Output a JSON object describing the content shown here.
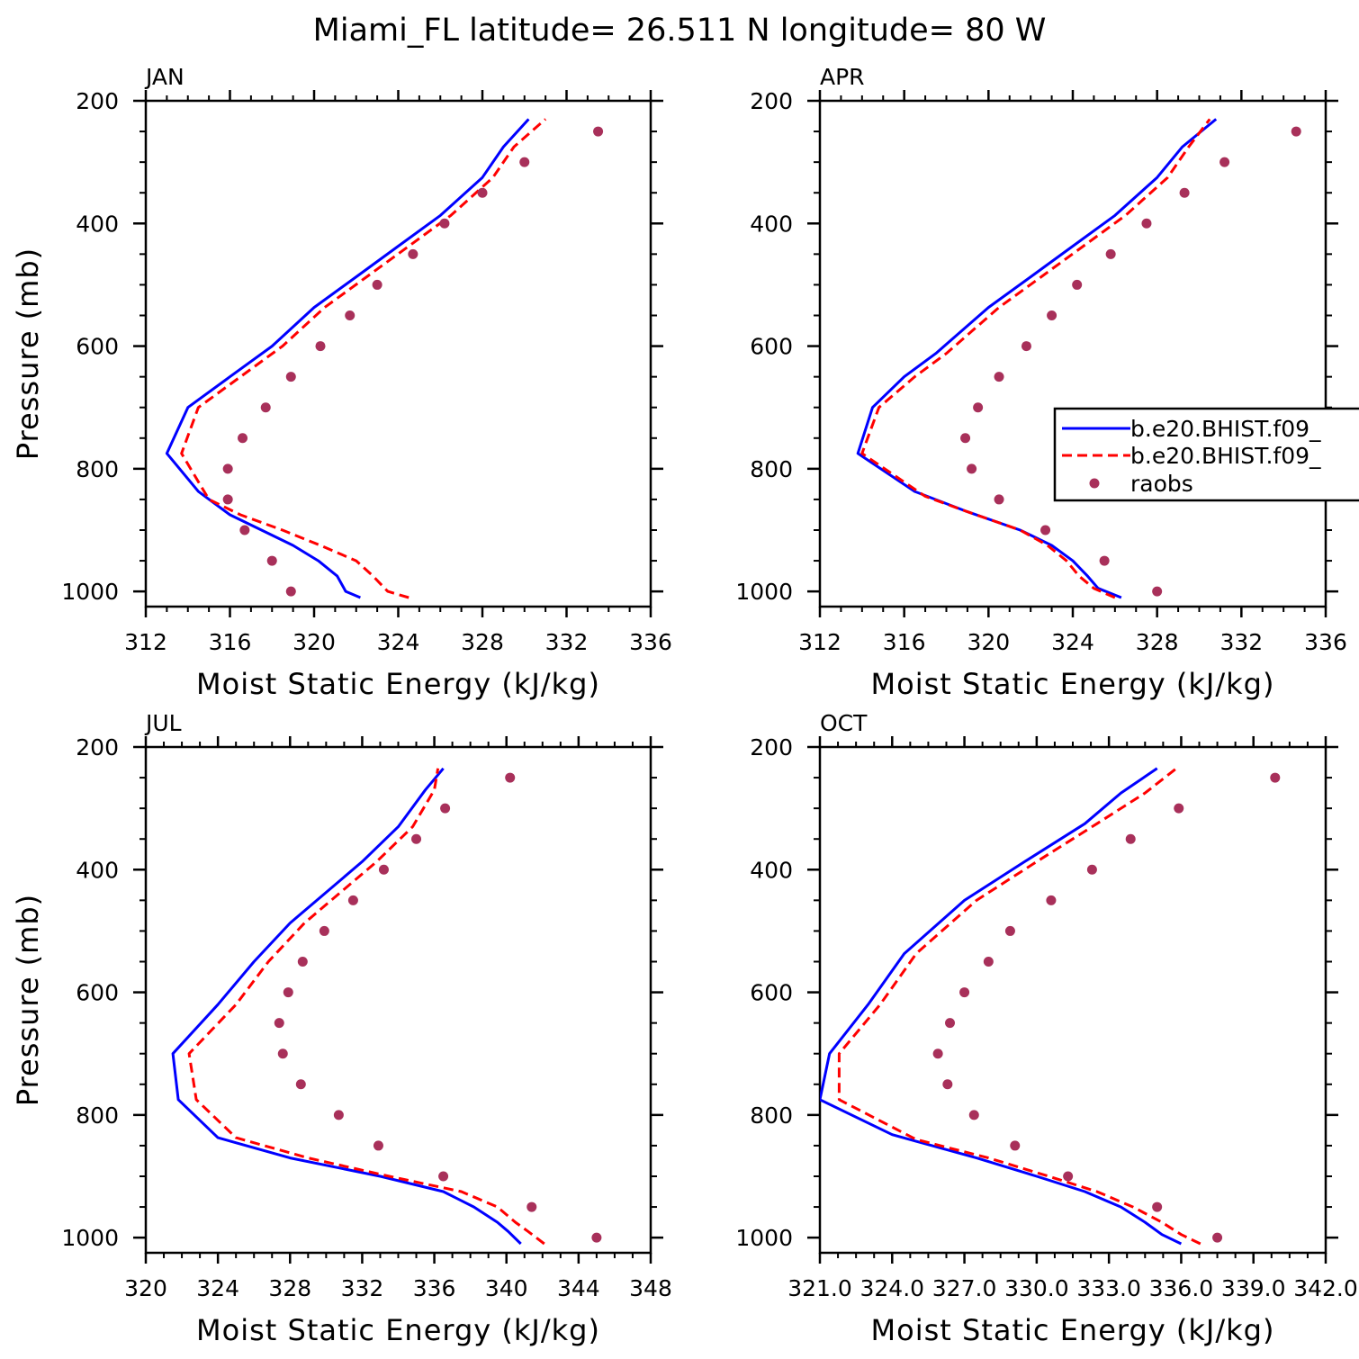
{
  "figure_title": "Miami_FL  latitude= 26.511 N longitude= 80 W",
  "colors": {
    "model1": "#0000ff",
    "model2": "#ff0000",
    "raobs": "#a8305a",
    "axes": "#000000"
  },
  "legend": {
    "entries": [
      "b.e20.BHIST.f09_",
      "b.e20.BHIST.f09_",
      "raobs"
    ],
    "panel": "APR",
    "placement": "right, clipped at figure edge"
  },
  "chart_data": [
    {
      "type": "line",
      "panel_label": "JAN",
      "xlabel": "Moist Static Energy (kJ/kg)",
      "ylabel": "Pressure (mb)",
      "xlim": [
        312,
        336
      ],
      "ylim": [
        1000,
        200
      ],
      "x_ticks": [
        "312",
        "316",
        "320",
        "324",
        "328",
        "332",
        "336"
      ],
      "y_ticks": [
        "200",
        "400",
        "600",
        "800",
        "1000"
      ],
      "series": [
        {
          "name": "b.e20.BHIST.f09_",
          "style": "solid",
          "color": "#0000ff",
          "points": [
            [
              322.2,
              1010
            ],
            [
              321.5,
              1000
            ],
            [
              321.1,
              975
            ],
            [
              320.2,
              950
            ],
            [
              319.0,
              925
            ],
            [
              317.5,
              900
            ],
            [
              316.0,
              875
            ],
            [
              314.5,
              837
            ],
            [
              313.0,
              775
            ],
            [
              314.0,
              700
            ],
            [
              316.0,
              650
            ],
            [
              318.0,
              600
            ],
            [
              320.0,
              537
            ],
            [
              322.0,
              487
            ],
            [
              324.0,
              437
            ],
            [
              326.0,
              387
            ],
            [
              328.0,
              325
            ],
            [
              329.0,
              275
            ],
            [
              330.2,
              230
            ]
          ]
        },
        {
          "name": "b.e20.BHIST.f09_",
          "style": "dashed",
          "color": "#ff0000",
          "points": [
            [
              324.5,
              1010
            ],
            [
              323.5,
              1000
            ],
            [
              322.8,
              975
            ],
            [
              322.0,
              950
            ],
            [
              320.3,
              925
            ],
            [
              318.5,
              900
            ],
            [
              316.5,
              875
            ],
            [
              315.0,
              850
            ],
            [
              313.7,
              775
            ],
            [
              314.5,
              700
            ],
            [
              316.5,
              650
            ],
            [
              318.5,
              600
            ],
            [
              320.5,
              537
            ],
            [
              322.5,
              487
            ],
            [
              324.5,
              437
            ],
            [
              326.5,
              387
            ],
            [
              328.5,
              325
            ],
            [
              329.5,
              275
            ],
            [
              331.0,
              230
            ]
          ]
        },
        {
          "name": "raobs",
          "style": "markers",
          "color": "#a8305a",
          "points": [
            [
              333.5,
              250
            ],
            [
              330.0,
              300
            ],
            [
              328.0,
              350
            ],
            [
              326.2,
              400
            ],
            [
              324.7,
              450
            ],
            [
              323.0,
              500
            ],
            [
              321.7,
              550
            ],
            [
              320.3,
              600
            ],
            [
              318.9,
              650
            ],
            [
              317.7,
              700
            ],
            [
              316.6,
              750
            ],
            [
              315.9,
              800
            ],
            [
              315.9,
              850
            ],
            [
              316.7,
              900
            ],
            [
              318.0,
              950
            ],
            [
              318.9,
              1000
            ]
          ]
        }
      ]
    },
    {
      "type": "line",
      "panel_label": "APR",
      "xlabel": "Moist Static Energy (kJ/kg)",
      "ylabel": "",
      "xlim": [
        312,
        336
      ],
      "ylim": [
        1000,
        200
      ],
      "x_ticks": [
        "312",
        "316",
        "320",
        "324",
        "328",
        "332",
        "336"
      ],
      "y_ticks": [
        "200",
        "400",
        "600",
        "800",
        "1000"
      ],
      "series": [
        {
          "name": "b.e20.BHIST.f09_",
          "style": "solid",
          "color": "#0000ff",
          "points": [
            [
              326.3,
              1010
            ],
            [
              325.2,
              995
            ],
            [
              324.7,
              975
            ],
            [
              324.0,
              950
            ],
            [
              323.0,
              925
            ],
            [
              321.5,
              900
            ],
            [
              319.0,
              870
            ],
            [
              316.5,
              837
            ],
            [
              313.8,
              775
            ],
            [
              314.5,
              700
            ],
            [
              316.0,
              650
            ],
            [
              317.5,
              612
            ],
            [
              320.0,
              537
            ],
            [
              322.0,
              487
            ],
            [
              324.0,
              437
            ],
            [
              326.0,
              387
            ],
            [
              328.0,
              325
            ],
            [
              329.2,
              275
            ],
            [
              330.8,
              230
            ]
          ]
        },
        {
          "name": "b.e20.BHIST.f09_",
          "style": "dashed",
          "color": "#ff0000",
          "points": [
            [
              326.0,
              1010
            ],
            [
              325.0,
              995
            ],
            [
              324.3,
              975
            ],
            [
              323.7,
              950
            ],
            [
              322.8,
              925
            ],
            [
              321.5,
              900
            ],
            [
              319.0,
              870
            ],
            [
              317.0,
              845
            ],
            [
              314.0,
              775
            ],
            [
              314.8,
              700
            ],
            [
              316.5,
              650
            ],
            [
              318.0,
              612
            ],
            [
              320.5,
              537
            ],
            [
              322.5,
              487
            ],
            [
              324.5,
              437
            ],
            [
              326.5,
              387
            ],
            [
              328.5,
              325
            ],
            [
              329.5,
              275
            ],
            [
              330.5,
              230
            ]
          ]
        },
        {
          "name": "raobs",
          "style": "markers",
          "color": "#a8305a",
          "points": [
            [
              334.6,
              250
            ],
            [
              331.2,
              300
            ],
            [
              329.3,
              350
            ],
            [
              327.5,
              400
            ],
            [
              325.8,
              450
            ],
            [
              324.2,
              500
            ],
            [
              323.0,
              550
            ],
            [
              321.8,
              600
            ],
            [
              320.5,
              650
            ],
            [
              319.5,
              700
            ],
            [
              318.9,
              750
            ],
            [
              319.2,
              800
            ],
            [
              320.5,
              850
            ],
            [
              322.7,
              900
            ],
            [
              325.5,
              950
            ],
            [
              328.0,
              1000
            ]
          ]
        }
      ]
    },
    {
      "type": "line",
      "panel_label": "JUL",
      "xlabel": "Moist Static Energy (kJ/kg)",
      "ylabel": "Pressure (mb)",
      "xlim": [
        320,
        348
      ],
      "ylim": [
        1000,
        200
      ],
      "x_ticks": [
        "320",
        "324",
        "328",
        "332",
        "336",
        "340",
        "344",
        "348"
      ],
      "y_ticks": [
        "200",
        "400",
        "600",
        "800",
        "1000"
      ],
      "series": [
        {
          "name": "b.e20.BHIST.f09_",
          "style": "solid",
          "color": "#0000ff",
          "points": [
            [
              340.8,
              1010
            ],
            [
              340.1,
              990
            ],
            [
              339.5,
              975
            ],
            [
              338.2,
              950
            ],
            [
              336.5,
              925
            ],
            [
              333.0,
              900
            ],
            [
              328.0,
              870
            ],
            [
              324.0,
              837
            ],
            [
              321.8,
              775
            ],
            [
              321.5,
              700
            ],
            [
              324.0,
              620
            ],
            [
              326.0,
              550
            ],
            [
              328.0,
              487
            ],
            [
              330.0,
              437
            ],
            [
              332.0,
              387
            ],
            [
              334.0,
              330
            ],
            [
              335.5,
              270
            ],
            [
              336.5,
              235
            ]
          ]
        },
        {
          "name": "b.e20.BHIST.f09_",
          "style": "dashed",
          "color": "#ff0000",
          "points": [
            [
              342.1,
              1010
            ],
            [
              341.2,
              990
            ],
            [
              340.5,
              975
            ],
            [
              339.5,
              950
            ],
            [
              337.5,
              925
            ],
            [
              333.5,
              900
            ],
            [
              329.0,
              870
            ],
            [
              325.0,
              837
            ],
            [
              322.8,
              775
            ],
            [
              322.4,
              700
            ],
            [
              325.0,
              620
            ],
            [
              326.8,
              550
            ],
            [
              328.8,
              487
            ],
            [
              330.8,
              437
            ],
            [
              332.8,
              387
            ],
            [
              334.8,
              330
            ],
            [
              336.0,
              270
            ],
            [
              336.2,
              235
            ]
          ]
        },
        {
          "name": "raobs",
          "style": "markers",
          "color": "#a8305a",
          "points": [
            [
              340.2,
              250
            ],
            [
              336.6,
              300
            ],
            [
              335.0,
              350
            ],
            [
              333.2,
              400
            ],
            [
              331.5,
              450
            ],
            [
              329.9,
              500
            ],
            [
              328.7,
              550
            ],
            [
              327.9,
              600
            ],
            [
              327.4,
              650
            ],
            [
              327.6,
              700
            ],
            [
              328.6,
              750
            ],
            [
              330.7,
              800
            ],
            [
              332.9,
              850
            ],
            [
              336.5,
              900
            ],
            [
              341.4,
              950
            ],
            [
              345.0,
              1000
            ]
          ]
        }
      ]
    },
    {
      "type": "line",
      "panel_label": "OCT",
      "xlabel": "Moist Static Energy (kJ/kg)",
      "ylabel": "",
      "xlim": [
        321.0,
        342.0
      ],
      "ylim": [
        1000,
        200
      ],
      "x_ticks": [
        "321.0",
        "324.0",
        "327.0",
        "330.0",
        "333.0",
        "336.0",
        "339.0",
        "342.0"
      ],
      "y_ticks": [
        "200",
        "400",
        "600",
        "800",
        "1000"
      ],
      "series": [
        {
          "name": "b.e20.BHIST.f09_",
          "style": "solid",
          "color": "#0000ff",
          "points": [
            [
              336.0,
              1010
            ],
            [
              335.2,
              995
            ],
            [
              334.5,
              975
            ],
            [
              333.5,
              950
            ],
            [
              332.0,
              925
            ],
            [
              330.0,
              900
            ],
            [
              327.5,
              870
            ],
            [
              324.0,
              832
            ],
            [
              321.0,
              775
            ],
            [
              321.4,
              700
            ],
            [
              323.0,
              620
            ],
            [
              324.5,
              537
            ],
            [
              327.0,
              450
            ],
            [
              329.5,
              387
            ],
            [
              332.0,
              325
            ],
            [
              333.5,
              275
            ],
            [
              335.0,
              235
            ]
          ]
        },
        {
          "name": "b.e20.BHIST.f09_",
          "style": "dashed",
          "color": "#ff0000",
          "points": [
            [
              336.8,
              1010
            ],
            [
              336.0,
              995
            ],
            [
              335.2,
              975
            ],
            [
              334.0,
              950
            ],
            [
              332.5,
              925
            ],
            [
              330.5,
              900
            ],
            [
              328.0,
              870
            ],
            [
              325.0,
              840
            ],
            [
              321.8,
              775
            ],
            [
              321.8,
              700
            ],
            [
              323.5,
              620
            ],
            [
              325.0,
              537
            ],
            [
              327.5,
              450
            ],
            [
              330.0,
              387
            ],
            [
              332.5,
              325
            ],
            [
              334.5,
              275
            ],
            [
              335.8,
              235
            ]
          ]
        },
        {
          "name": "raobs",
          "style": "markers",
          "color": "#a8305a",
          "points": [
            [
              339.9,
              250
            ],
            [
              335.9,
              300
            ],
            [
              333.9,
              350
            ],
            [
              332.3,
              400
            ],
            [
              330.6,
              450
            ],
            [
              328.9,
              500
            ],
            [
              328.0,
              550
            ],
            [
              327.0,
              600
            ],
            [
              326.4,
              650
            ],
            [
              325.9,
              700
            ],
            [
              326.3,
              750
            ],
            [
              327.4,
              800
            ],
            [
              329.1,
              850
            ],
            [
              331.3,
              900
            ],
            [
              335.0,
              950
            ],
            [
              337.5,
              1000
            ]
          ]
        }
      ]
    }
  ]
}
